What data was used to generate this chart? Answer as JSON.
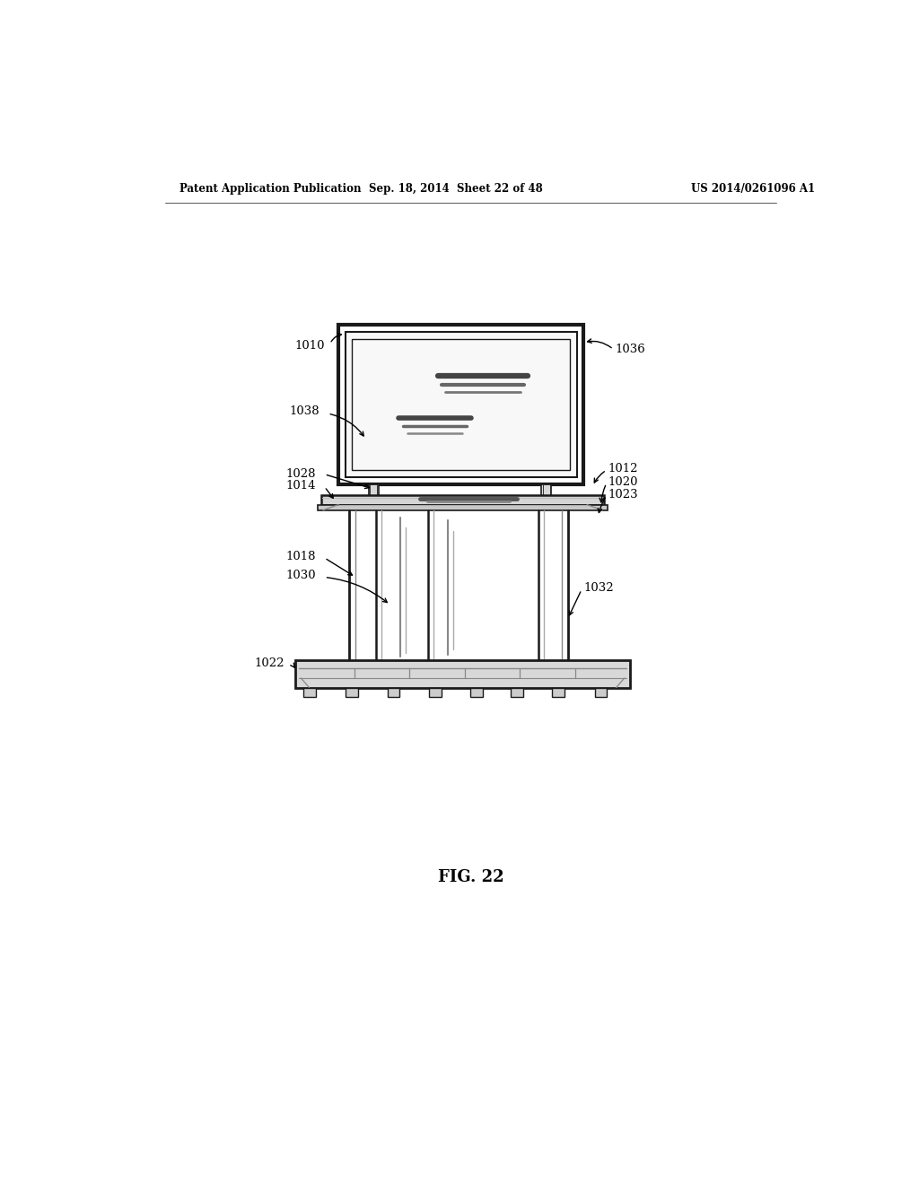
{
  "bg_color": "#ffffff",
  "title_left": "Patent Application Publication",
  "title_center": "Sep. 18, 2014  Sheet 22 of 48",
  "title_right": "US 2014/0261096 A1",
  "fig_label": "FIG. 22",
  "lc": "#1a1a1a"
}
